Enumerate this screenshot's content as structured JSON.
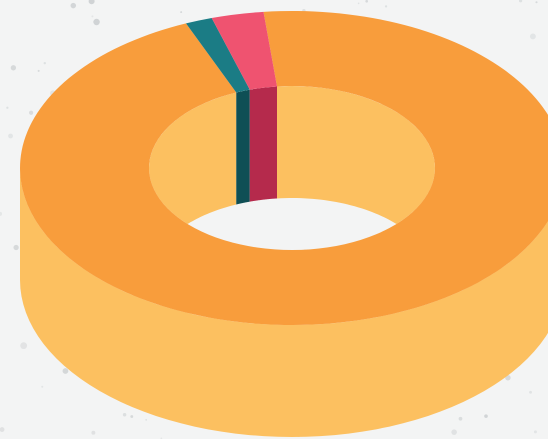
{
  "chart_data": {
    "type": "pie",
    "variant": "3d-donut",
    "title": "",
    "legend": "none",
    "slices": [
      {
        "value": 95.3,
        "color": "#f89d3c",
        "side_color": "#fcc060"
      },
      {
        "value": 1.6,
        "color": "#1b7c85",
        "side_color": "#0f4f55"
      },
      {
        "value": 3.1,
        "color": "#ef5370",
        "side_color": "#b52a4c"
      }
    ],
    "hole_color": "#fcc060",
    "background": "#f3f4f4",
    "speckle_color": "#c9cdcf"
  }
}
